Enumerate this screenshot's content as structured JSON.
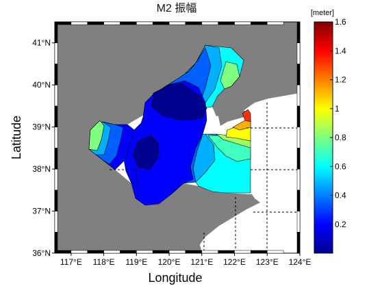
{
  "chart_data": {
    "type": "heatmap",
    "title": "M2 振幅",
    "xlabel": "Longitude",
    "ylabel": "Latitude",
    "xlim": [
      116.5,
      124
    ],
    "ylim": [
      36,
      41.5
    ],
    "x_ticks": [
      117,
      118,
      119,
      120,
      121,
      122,
      123,
      124
    ],
    "x_tick_labels": [
      "117°E",
      "118°E",
      "119°E",
      "120°E",
      "121°E",
      "122°E",
      "123°E",
      "124°E"
    ],
    "y_ticks": [
      36,
      37,
      38,
      39,
      40,
      41
    ],
    "y_tick_labels": [
      "36°N",
      "37°N",
      "38°N",
      "39°N",
      "40°N",
      "41°N"
    ],
    "colorbar": {
      "label": "[meter]",
      "range": [
        0,
        1.6
      ],
      "ticks": [
        0.2,
        0.4,
        0.6,
        0.8,
        1,
        1.2,
        1.4,
        1.6
      ],
      "tick_labels": [
        "0.2",
        "0.4",
        "0.6",
        "0.8",
        "1",
        "1.2",
        "1.4",
        "1.6"
      ],
      "colormap": "jet"
    },
    "contour_levels": [
      0.1,
      0.2,
      0.3,
      0.4,
      0.5,
      0.6,
      0.7,
      0.8
    ],
    "land_color": "#808080",
    "water_color": "#ffffff",
    "grid": "dashed, in open sea only"
  }
}
